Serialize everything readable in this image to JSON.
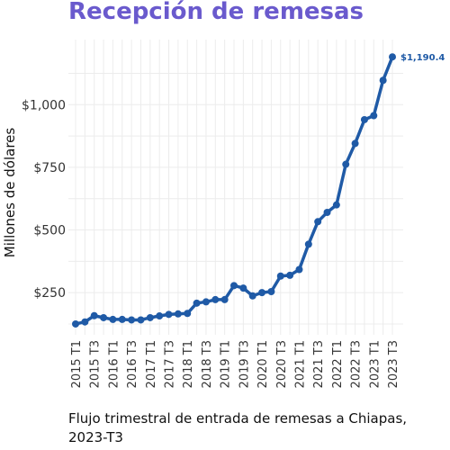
{
  "chart_title": "Recepción de remesas",
  "caption": "Flujo trimestral de entrada de remesas a Chiapas, 2023-T3",
  "colors": {
    "title": "#6a5acd",
    "line": "#1f5aa6",
    "grid": "#ececec",
    "end_label": "#1f5aa6"
  },
  "chart_data": {
    "type": "line",
    "title": "Recepción de remesas",
    "xlabel": "",
    "ylabel": "Millones de dólares",
    "ylim": [
      120,
      1220
    ],
    "y_ticks": [
      250,
      500,
      750,
      1000
    ],
    "y_tick_labels": [
      "$250",
      "$500",
      "$750",
      "$1,000"
    ],
    "grid": true,
    "x_tick_labels": [
      "2015 T1",
      "2015 T3",
      "2016 T1",
      "2016 T3",
      "2017 T1",
      "2017 T3",
      "2018 T1",
      "2018 T3",
      "2019 T1",
      "2019 T3",
      "2020 T1",
      "2020 T3",
      "2021 T1",
      "2021 T3",
      "2022 T1",
      "2022 T3",
      "2023 T1",
      "2023 T3"
    ],
    "x": [
      "2015 T1",
      "2015 T2",
      "2015 T3",
      "2015 T4",
      "2016 T1",
      "2016 T2",
      "2016 T3",
      "2016 T4",
      "2017 T1",
      "2017 T2",
      "2017 T3",
      "2017 T4",
      "2018 T1",
      "2018 T2",
      "2018 T3",
      "2018 T4",
      "2019 T1",
      "2019 T2",
      "2019 T3",
      "2019 T4",
      "2020 T1",
      "2020 T2",
      "2020 T3",
      "2020 T4",
      "2021 T1",
      "2021 T2",
      "2021 T3",
      "2021 T4",
      "2022 T1",
      "2022 T2",
      "2022 T3",
      "2022 T4",
      "2023 T1",
      "2023 T2",
      "2023 T3"
    ],
    "series": [
      {
        "values": [
          125,
          133,
          158,
          150,
          143,
          143,
          141,
          141,
          150,
          157,
          163,
          165,
          167,
          208,
          213,
          222,
          222,
          278,
          268,
          237,
          250,
          254,
          316,
          319,
          342,
          443,
          533,
          570,
          600,
          762,
          845,
          940,
          956,
          1097,
          1190.4
        ]
      }
    ],
    "end_label": "$1,190.4"
  }
}
